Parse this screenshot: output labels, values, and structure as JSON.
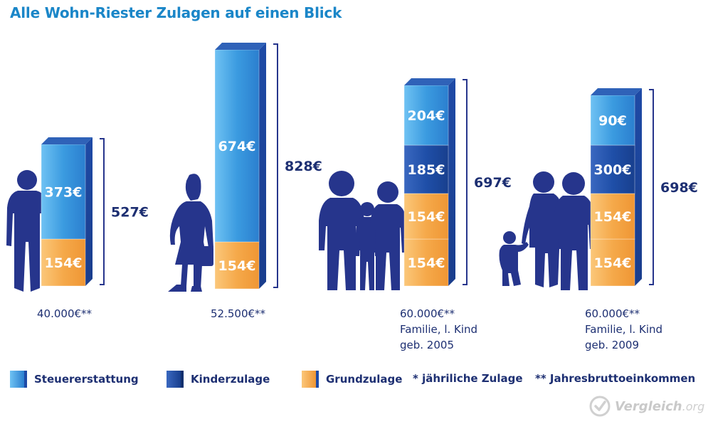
{
  "title": "Alle Wohn-Riester Zulagen auf einen Blick",
  "colors": {
    "steuer": "#3fa3e6",
    "kinder": "#1f4fa8",
    "grund": "#f5a94a",
    "dark_text": "#1d2f72",
    "title": "#1a86c8",
    "silhouette": "#26358c"
  },
  "chart_data": {
    "type": "bar",
    "stacked": true,
    "unit": "€",
    "categories": [
      {
        "caption": [
          "40.000€**"
        ],
        "figure": "single-man",
        "total_label": "527€"
      },
      {
        "caption": [
          "52.500€**"
        ],
        "figure": "single-woman",
        "total_label": "828€"
      },
      {
        "caption": [
          "60.000€**",
          "Familie, l. Kind",
          "geb. 2005"
        ],
        "figure": "family-older-child",
        "total_label": "697€"
      },
      {
        "caption": [
          "60.000€**",
          "Familie, l. Kind",
          "geb. 2009"
        ],
        "figure": "family-toddler",
        "total_label": "698€"
      }
    ],
    "segments": [
      [
        {
          "type": "grund",
          "value": 154,
          "label": "154€"
        },
        {
          "type": "steuer",
          "value": 373,
          "label": "373€"
        }
      ],
      [
        {
          "type": "grund",
          "value": 154,
          "label": "154€"
        },
        {
          "type": "steuer",
          "value": 674,
          "label": "674€"
        }
      ],
      [
        {
          "type": "grund",
          "value": 154,
          "label": "154€"
        },
        {
          "type": "grund",
          "value": 154,
          "label": "154€"
        },
        {
          "type": "kinder",
          "value": 185,
          "label": "185€"
        },
        {
          "type": "steuer",
          "value": 204,
          "label": "204€"
        }
      ],
      [
        {
          "type": "grund",
          "value": 154,
          "label": "154€"
        },
        {
          "type": "grund",
          "value": 154,
          "label": "154€"
        },
        {
          "type": "kinder",
          "value": 300,
          "label": "300€"
        },
        {
          "type": "steuer",
          "value": 90,
          "label": "90€"
        }
      ]
    ],
    "legend": [
      {
        "type": "steuer",
        "label": "Steuererstattung"
      },
      {
        "type": "kinder",
        "label": "Kinderzulage"
      },
      {
        "type": "grund",
        "label": "Grundzulage"
      }
    ]
  },
  "notes": {
    "annual": "* jähriliche Zulage",
    "income": "** Jahresbruttoeinkommen"
  },
  "watermark": {
    "brand": "Vergleich",
    "suffix": ".org"
  }
}
